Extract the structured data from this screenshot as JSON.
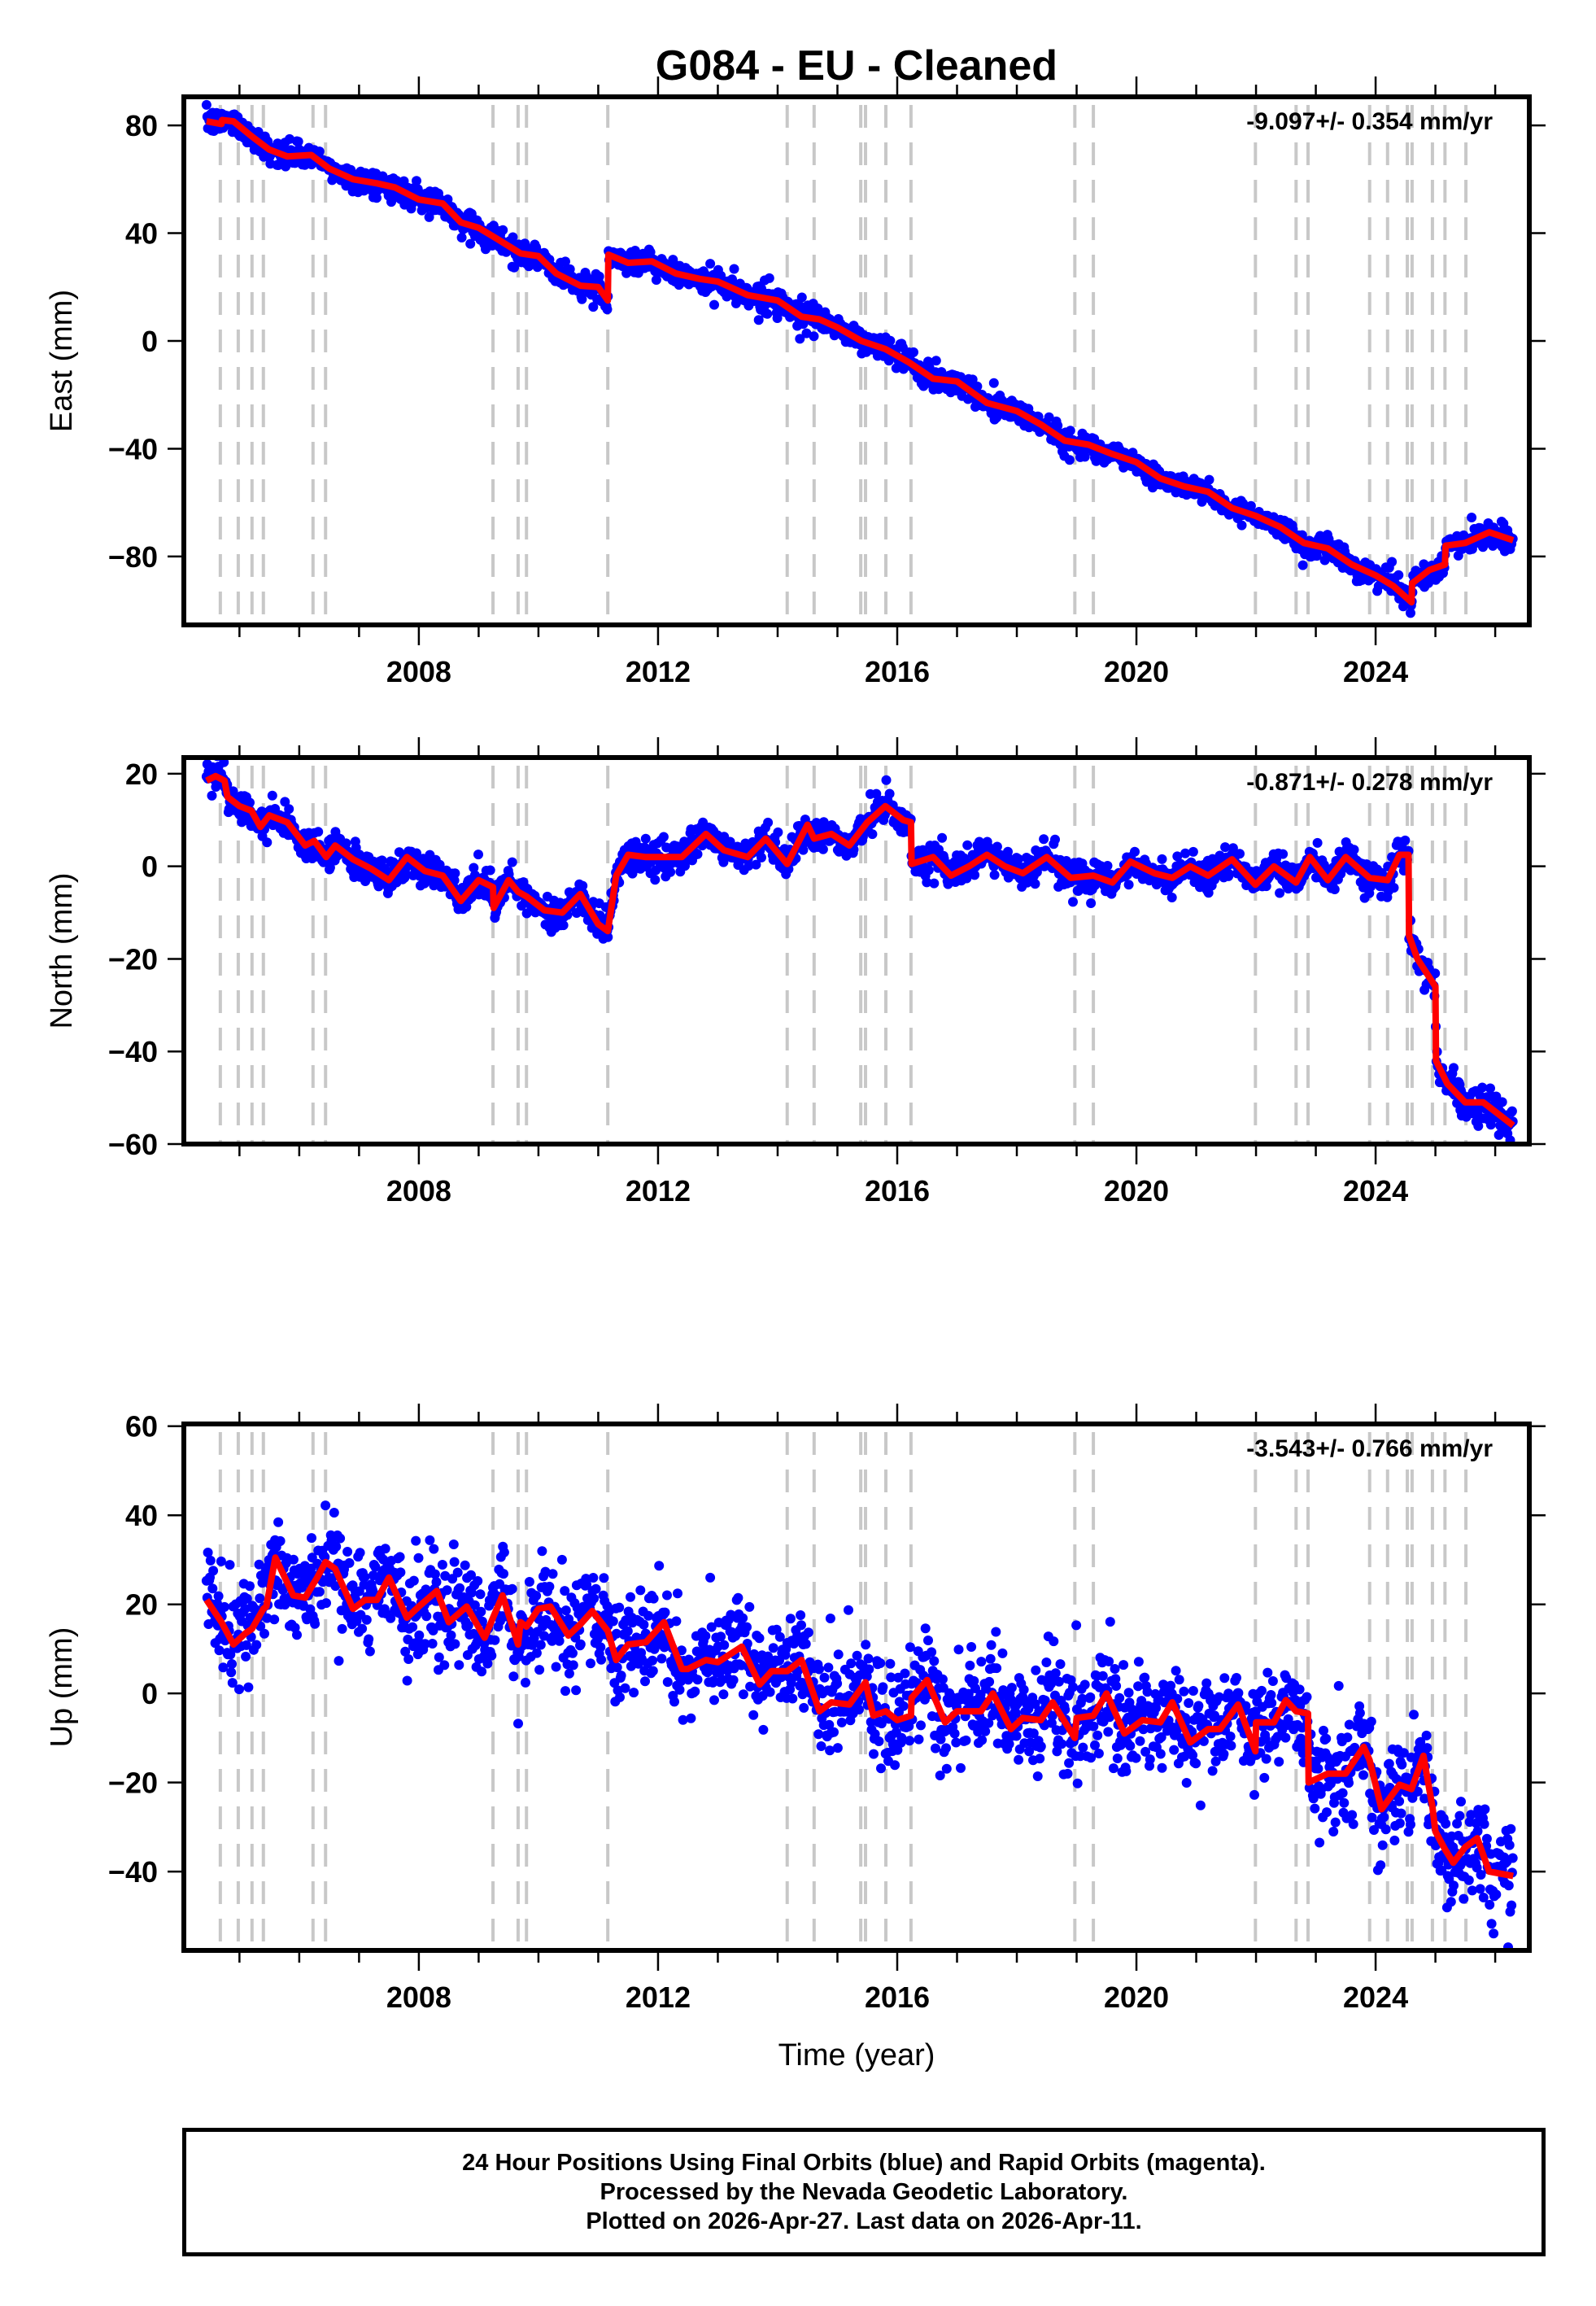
{
  "chart_data": {
    "type": "scatter",
    "title": "G084  - EU - Cleaned",
    "xlabel": "Time (year)",
    "xlim": [
      2004.07,
      2026.57
    ],
    "x_ticks": [
      2008,
      2012,
      2016,
      2020,
      2024
    ],
    "x_tick_labels": [
      "2008",
      "2012",
      "2016",
      "2020",
      "2024"
    ],
    "x_minor_tick_step": 1,
    "data_span": [
      2004.45,
      2026.3
    ],
    "event_lines": [
      2004.68,
      2004.98,
      2005.21,
      2005.4,
      2006.23,
      2006.44,
      2009.24,
      2009.66,
      2009.8,
      2011.16,
      2014.16,
      2014.61,
      2015.39,
      2015.47,
      2015.81,
      2016.23,
      2018.97,
      2019.28,
      2021.99,
      2022.67,
      2022.87,
      2023.9,
      2024.2,
      2024.53,
      2024.61,
      2024.95,
      2025.16,
      2025.51
    ],
    "legend": {
      "final_orbits": "blue",
      "rapid_orbits": "magenta",
      "model": "red"
    },
    "colors": {
      "points": "#0000ff",
      "model": "#ff0000",
      "event_lines": "#c8c8c8",
      "frame": "#000000"
    },
    "panels": [
      {
        "id": "east",
        "ylabel": "East (mm)",
        "ylim": [
          -105.4,
          90.6
        ],
        "y_ticks": [
          80,
          40,
          0,
          -40,
          -80
        ],
        "y_tick_labels": [
          "80",
          "40",
          "0",
          "−40",
          "−80"
        ],
        "rate_text": "-9.097+/- 0.354 mm/yr",
        "rate": -9.097,
        "rate_sigma": 0.354,
        "scatter_sd": 2.2,
        "outlier_rate": 0.01,
        "model": {
          "x": [
            2004.45,
            2004.7,
            2004.71,
            2004.9,
            2005.2,
            2005.5,
            2005.8,
            2006.2,
            2006.5,
            2006.9,
            2007.3,
            2007.6,
            2008.0,
            2008.4,
            2008.7,
            2009.0,
            2009.3,
            2009.7,
            2010.0,
            2010.3,
            2010.7,
            2011.0,
            2011.16,
            2011.17,
            2011.5,
            2011.9,
            2012.3,
            2012.7,
            2013.0,
            2013.5,
            2014.0,
            2014.4,
            2014.7,
            2015.0,
            2015.4,
            2015.8,
            2016.2,
            2016.6,
            2017.0,
            2017.5,
            2018.0,
            2018.4,
            2018.8,
            2019.2,
            2019.6,
            2020.0,
            2020.4,
            2020.8,
            2021.2,
            2021.6,
            2022.0,
            2022.4,
            2022.8,
            2023.2,
            2023.6,
            2024.0,
            2024.3,
            2024.6,
            2024.61,
            2024.9,
            2025.16,
            2025.17,
            2025.5,
            2025.9,
            2026.3
          ],
          "y": [
            81.5,
            80.5,
            82.0,
            81.5,
            76.0,
            71.0,
            68.5,
            69.0,
            64.0,
            60.0,
            58.5,
            57.0,
            52.5,
            51.0,
            44.0,
            42.0,
            38.0,
            32.5,
            31.5,
            25.0,
            20.5,
            20.0,
            15.0,
            32.0,
            29.0,
            29.5,
            25.0,
            23.0,
            22.0,
            17.0,
            15.0,
            9.0,
            8.0,
            5.0,
            0.0,
            -3.0,
            -8.0,
            -14.0,
            -15.0,
            -23.0,
            -26.0,
            -31.0,
            -37.0,
            -38.5,
            -42.0,
            -45.0,
            -51.0,
            -54.0,
            -56.0,
            -62.0,
            -65.0,
            -69.0,
            -75.0,
            -77.0,
            -83.0,
            -87.0,
            -91.0,
            -97.0,
            -90.0,
            -85.0,
            -83.0,
            -76.0,
            -75.0,
            -71.0,
            -74.0
          ]
        }
      },
      {
        "id": "north",
        "ylabel": "North (mm)",
        "ylim": [
          -60,
          23.5
        ],
        "y_ticks": [
          20,
          0,
          -20,
          -40,
          -60
        ],
        "y_tick_labels": [
          "20",
          "0",
          "−20",
          "−40",
          "−60"
        ],
        "rate_text": "-0.871+/- 0.278 mm/yr",
        "rate": -0.871,
        "rate_sigma": 0.278,
        "scatter_sd": 1.7,
        "outlier_rate": 0.01,
        "model": {
          "x": [
            2004.45,
            2004.6,
            2004.75,
            2004.8,
            2005.0,
            2005.2,
            2005.35,
            2005.5,
            2005.8,
            2006.1,
            2006.25,
            2006.45,
            2006.6,
            2006.9,
            2007.2,
            2007.5,
            2007.8,
            2008.1,
            2008.4,
            2008.7,
            2009.0,
            2009.24,
            2009.25,
            2009.5,
            2009.66,
            2009.8,
            2010.1,
            2010.4,
            2010.7,
            2011.0,
            2011.16,
            2011.3,
            2011.5,
            2011.8,
            2012.1,
            2012.4,
            2012.8,
            2013.1,
            2013.5,
            2013.8,
            2014.16,
            2014.5,
            2014.61,
            2014.9,
            2015.2,
            2015.5,
            2015.8,
            2016.1,
            2016.23,
            2016.24,
            2016.6,
            2016.9,
            2017.2,
            2017.5,
            2017.8,
            2018.1,
            2018.5,
            2018.9,
            2019.28,
            2019.6,
            2019.9,
            2020.3,
            2020.6,
            2020.9,
            2021.2,
            2021.6,
            2021.99,
            2022.3,
            2022.67,
            2022.9,
            2023.2,
            2023.5,
            2023.9,
            2024.2,
            2024.4,
            2024.55,
            2024.56,
            2024.7,
            2024.9,
            2025.0,
            2025.01,
            2025.2,
            2025.5,
            2025.8,
            2026.3
          ],
          "y": [
            18.5,
            19.5,
            18.5,
            15.0,
            13.0,
            12.0,
            8.5,
            11.0,
            9.5,
            4.5,
            5.5,
            2.0,
            4.5,
            1.5,
            -0.5,
            -3.0,
            2.0,
            -1.0,
            -2.0,
            -7.5,
            -3.0,
            -4.5,
            -9.0,
            -3.0,
            -5.5,
            -6.5,
            -9.5,
            -10.0,
            -6.0,
            -12.5,
            -14.0,
            -2.0,
            2.5,
            2.0,
            2.0,
            2.0,
            7.0,
            3.5,
            2.0,
            6.0,
            0.5,
            9.0,
            6.0,
            7.0,
            4.5,
            9.5,
            13.0,
            10.0,
            9.5,
            0.5,
            2.0,
            -2.0,
            0.0,
            2.5,
            0.0,
            -1.5,
            2.0,
            -2.5,
            -2.0,
            -3.5,
            1.0,
            -1.5,
            -2.5,
            0.0,
            -2.0,
            1.5,
            -4.0,
            0.0,
            -3.5,
            2.0,
            -3.0,
            2.0,
            -2.5,
            -3.0,
            2.5,
            2.5,
            -15.0,
            -20.0,
            -24.0,
            -26.0,
            -42.0,
            -47.0,
            -51.0,
            -51.0,
            -56.0
          ]
        }
      },
      {
        "id": "up",
        "ylabel": "Up (mm)",
        "ylim": [
          -57.7,
          60.5
        ],
        "y_ticks": [
          60,
          40,
          20,
          0,
          -20,
          -40
        ],
        "y_tick_labels": [
          "60",
          "40",
          "20",
          "0",
          "−20",
          "−40"
        ],
        "rate_text": "-3.543+/- 0.766 mm/yr",
        "rate": -3.543,
        "rate_sigma": 0.766,
        "scatter_sd": 5.5,
        "outlier_rate": 0.015,
        "model": {
          "x": [
            2004.45,
            2004.7,
            2004.9,
            2005.1,
            2005.21,
            2005.4,
            2005.45,
            2005.6,
            2005.9,
            2006.1,
            2006.23,
            2006.3,
            2006.44,
            2006.6,
            2006.9,
            2007.1,
            2007.3,
            2007.5,
            2007.8,
            2008.0,
            2008.3,
            2008.5,
            2008.8,
            2009.1,
            2009.24,
            2009.4,
            2009.66,
            2009.7,
            2009.8,
            2010.0,
            2010.2,
            2010.5,
            2010.7,
            2010.9,
            2011.16,
            2011.3,
            2011.5,
            2011.8,
            2012.1,
            2012.4,
            2012.5,
            2012.8,
            2013.0,
            2013.4,
            2013.7,
            2013.9,
            2014.16,
            2014.4,
            2014.7,
            2014.9,
            2015.2,
            2015.47,
            2015.6,
            2015.81,
            2016.0,
            2016.23,
            2016.24,
            2016.5,
            2016.8,
            2017.0,
            2017.4,
            2017.6,
            2017.9,
            2018.1,
            2018.4,
            2018.6,
            2018.97,
            2019.0,
            2019.28,
            2019.5,
            2019.8,
            2020.1,
            2020.4,
            2020.6,
            2020.9,
            2021.2,
            2021.4,
            2021.7,
            2021.99,
            2022.0,
            2022.3,
            2022.5,
            2022.67,
            2022.87,
            2022.88,
            2023.2,
            2023.5,
            2023.8,
            2023.9,
            2024.1,
            2024.4,
            2024.6,
            2024.8,
            2024.95,
            2025.0,
            2025.16,
            2025.3,
            2025.5,
            2025.7,
            2025.9,
            2026.3
          ],
          "y": [
            21.0,
            16.0,
            11.0,
            13.5,
            14.5,
            19.0,
            19.5,
            30.5,
            22.0,
            21.5,
            24.5,
            26.0,
            29.5,
            28.0,
            19.0,
            21.0,
            21.0,
            26.0,
            17.0,
            19.5,
            23.0,
            16.0,
            19.5,
            12.5,
            17.0,
            22.0,
            11.0,
            16.0,
            15.0,
            19.0,
            19.5,
            13.0,
            15.5,
            18.5,
            14.0,
            7.5,
            11.0,
            11.5,
            16.0,
            5.5,
            5.5,
            7.5,
            7.0,
            10.5,
            2.0,
            5.0,
            5.0,
            7.5,
            -4.0,
            -2.0,
            -2.5,
            2.5,
            -5.0,
            -4.0,
            -6.0,
            -5.0,
            -1.0,
            3.0,
            -6.5,
            -4.0,
            -4.0,
            0.0,
            -8.0,
            -5.5,
            -6.0,
            -2.0,
            -10.0,
            -5.5,
            -5.0,
            0.0,
            -9.0,
            -6.0,
            -6.5,
            -2.0,
            -11.0,
            -8.0,
            -8.0,
            -2.5,
            -13.0,
            -6.5,
            -6.5,
            -1.5,
            -4.0,
            -4.5,
            -20.0,
            -18.0,
            -18.0,
            -12.0,
            -15.0,
            -26.0,
            -20.5,
            -21.5,
            -14.0,
            -25.5,
            -31.0,
            -35.0,
            -38.0,
            -34.5,
            -32.5,
            -40.0,
            -41.0
          ]
        }
      }
    ]
  },
  "footer": {
    "line1": "24 Hour Positions Using Final Orbits (blue) and Rapid Orbits (magenta).",
    "line2": "Processed by the Nevada Geodetic Laboratory.",
    "line3": "Plotted on 2026-Apr-27. Last data on 2026-Apr-11."
  }
}
